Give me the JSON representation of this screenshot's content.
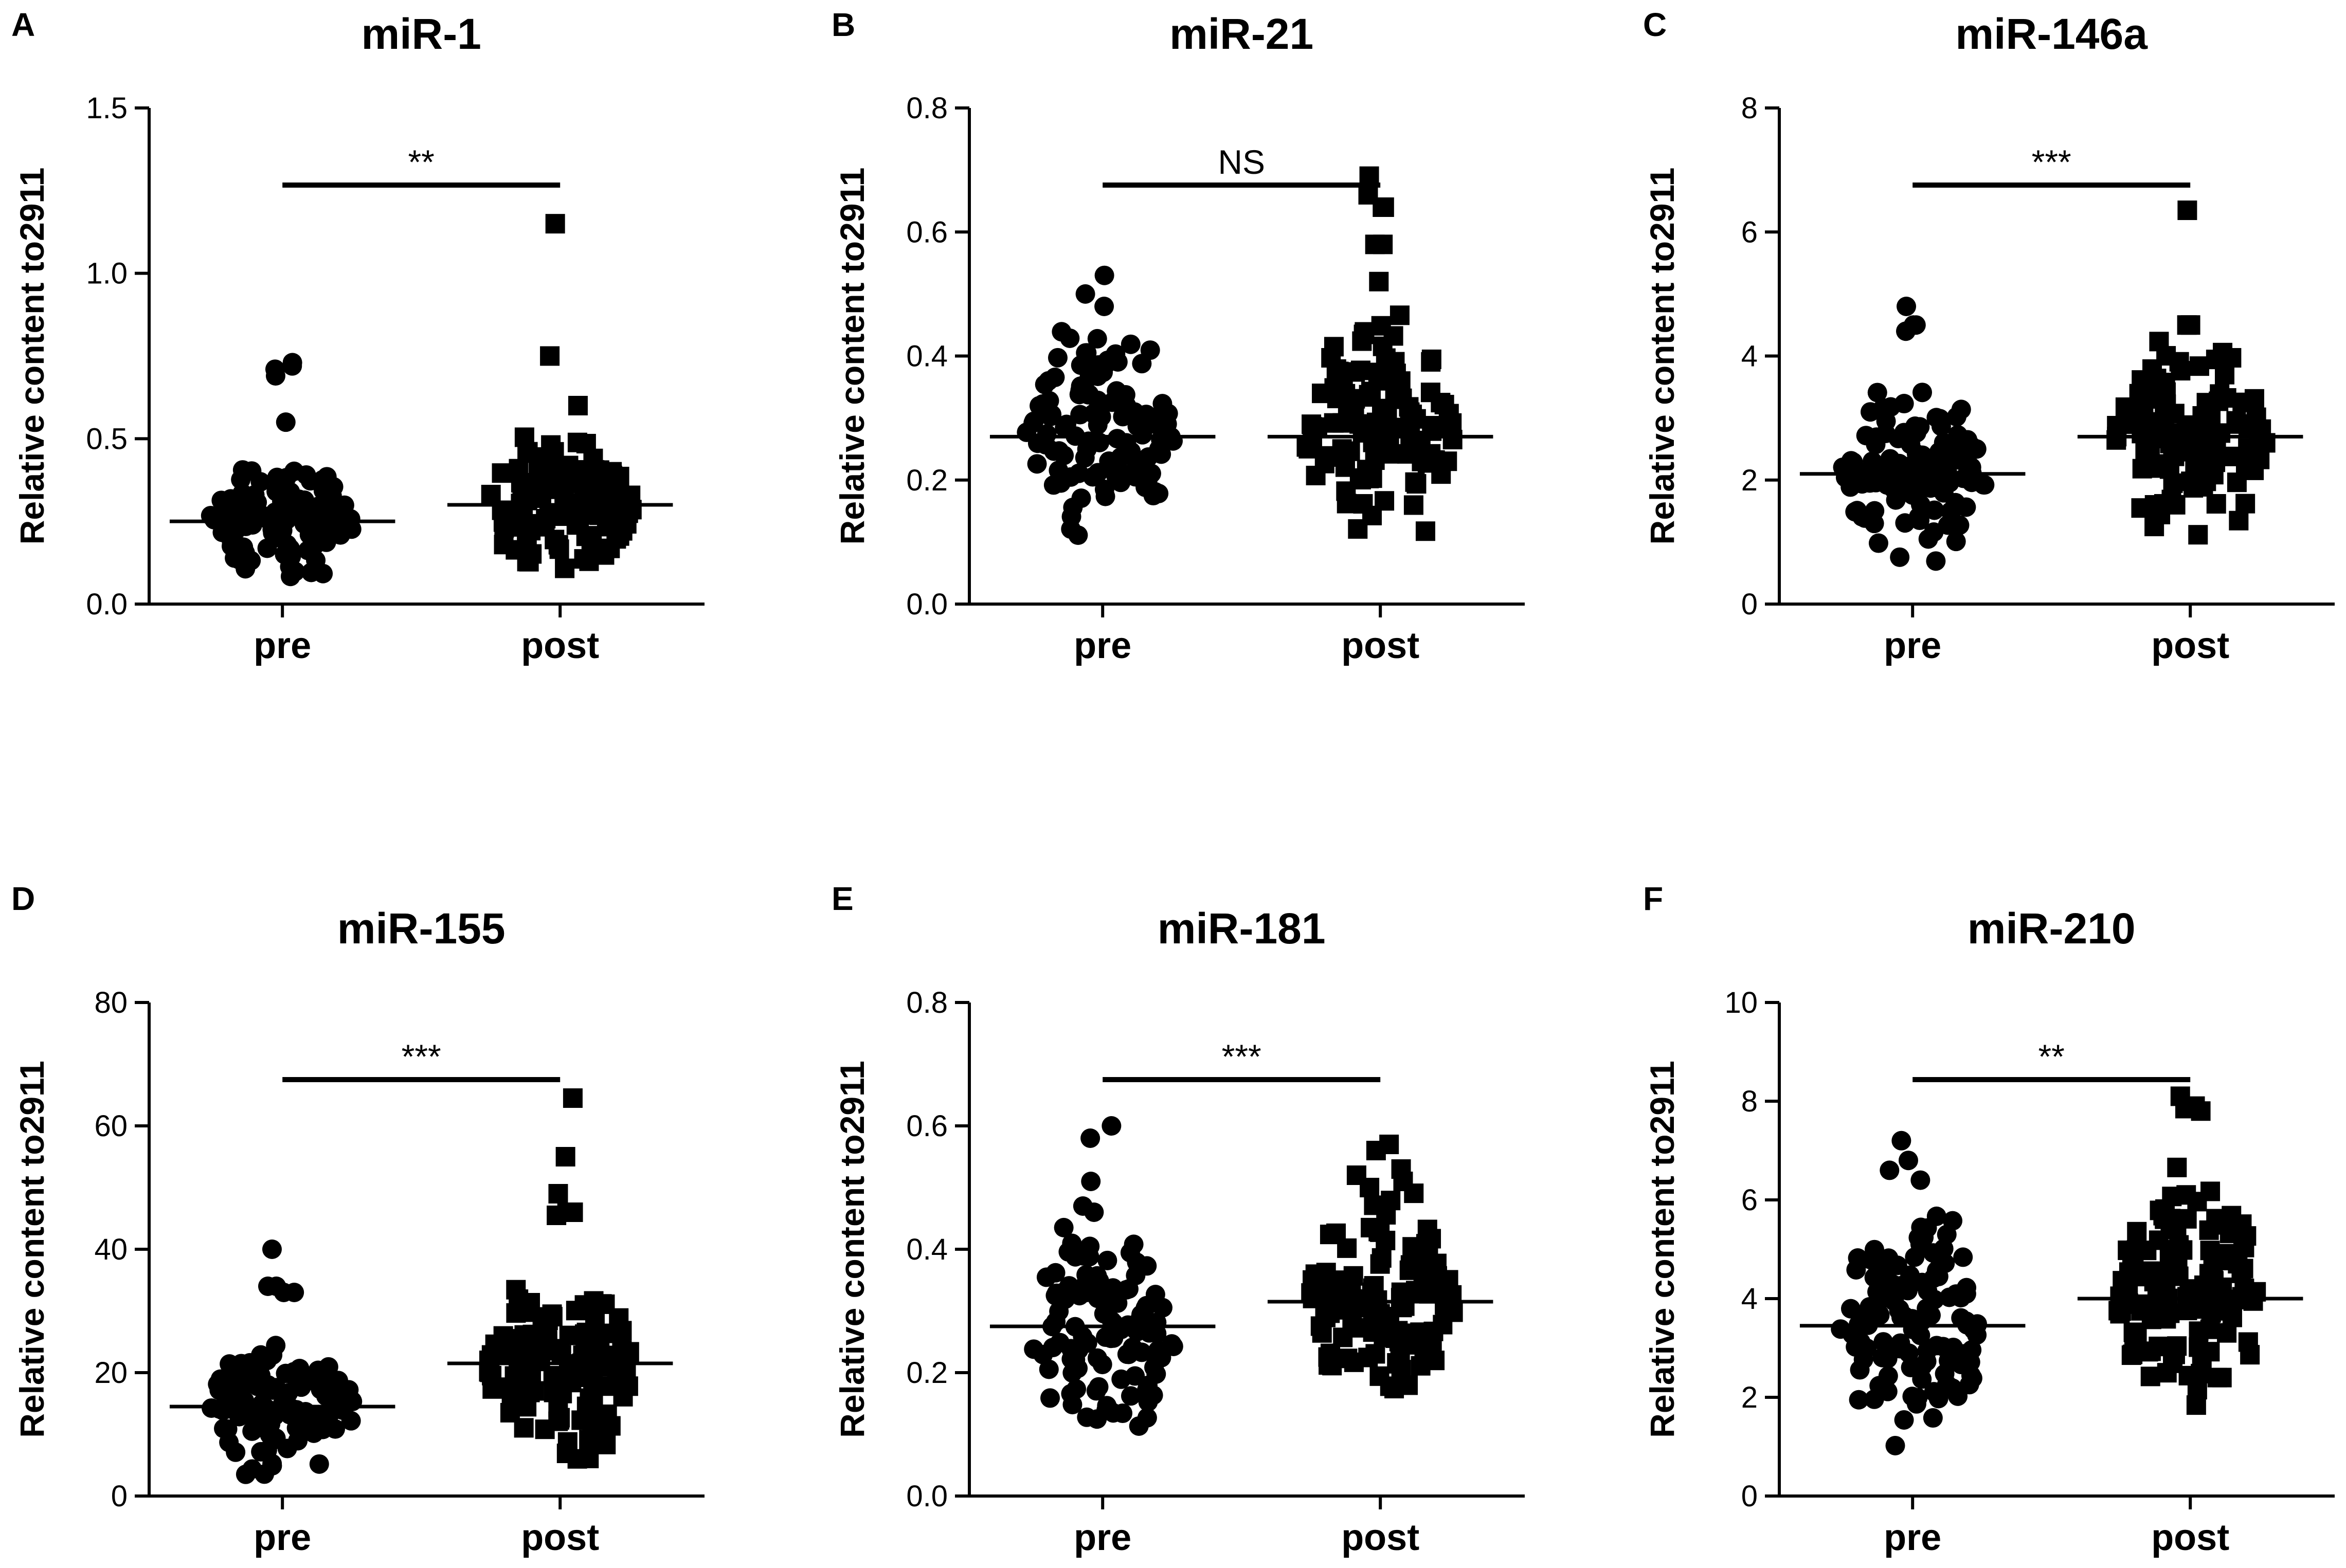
{
  "figure": {
    "y_axis_label": "Relative content to2911",
    "group_labels": [
      "pre",
      "post"
    ],
    "marker_color": "#000000"
  },
  "chart_data": [
    {
      "panel": "A",
      "type": "scatter",
      "title": "miR-1",
      "ylabel": "Relative content to2911",
      "ylim": [
        0,
        1.5
      ],
      "yticks": [
        "0.0",
        "0.5",
        "1.0",
        "1.5"
      ],
      "categories": [
        "pre",
        "post"
      ],
      "significance": "**",
      "series": [
        {
          "name": "pre",
          "marker": "circle",
          "mean": 0.25,
          "n": 115,
          "min": 0.06,
          "max": 0.73,
          "outliers": [
            0.73,
            0.72,
            0.71,
            0.69,
            0.55
          ]
        },
        {
          "name": "post",
          "marker": "square",
          "mean": 0.3,
          "n": 115,
          "min": 0.08,
          "max": 1.15,
          "outliers": [
            1.15,
            0.75,
            0.6
          ]
        }
      ]
    },
    {
      "panel": "B",
      "type": "scatter",
      "title": "miR-21",
      "ylabel": "Relative content to2911",
      "ylim": [
        0,
        0.8
      ],
      "yticks": [
        "0.0",
        "0.2",
        "0.4",
        "0.6",
        "0.8"
      ],
      "categories": [
        "pre",
        "post"
      ],
      "significance": "NS",
      "series": [
        {
          "name": "pre",
          "marker": "circle",
          "mean": 0.27,
          "n": 115,
          "min": 0.1,
          "max": 0.53,
          "outliers": [
            0.53,
            0.5,
            0.48
          ]
        },
        {
          "name": "post",
          "marker": "square",
          "mean": 0.27,
          "n": 115,
          "min": 0.1,
          "max": 0.69,
          "outliers": [
            0.69,
            0.66,
            0.64,
            0.64,
            0.58,
            0.58,
            0.52
          ]
        }
      ]
    },
    {
      "panel": "C",
      "type": "scatter",
      "title": "miR-146a",
      "ylabel": "Relative content to2911",
      "ylim": [
        0,
        8
      ],
      "yticks": [
        "0",
        "2",
        "4",
        "6",
        "8"
      ],
      "categories": [
        "pre",
        "post"
      ],
      "significance": "***",
      "series": [
        {
          "name": "pre",
          "marker": "circle",
          "mean": 2.1,
          "n": 120,
          "min": 0.6,
          "max": 4.8,
          "outliers": [
            4.8,
            4.5,
            4.5,
            4.4
          ]
        },
        {
          "name": "post",
          "marker": "square",
          "mean": 2.7,
          "n": 120,
          "min": 0.8,
          "max": 6.35,
          "outliers": [
            6.35,
            4.5,
            4.5
          ]
        }
      ]
    },
    {
      "panel": "D",
      "type": "scatter",
      "title": "miR-155",
      "ylabel": "Relative content to2911",
      "ylim": [
        0,
        80
      ],
      "yticks": [
        "0",
        "20",
        "40",
        "60",
        "80"
      ],
      "categories": [
        "pre",
        "post"
      ],
      "significance": "***",
      "series": [
        {
          "name": "pre",
          "marker": "circle",
          "mean": 14.5,
          "n": 120,
          "min": 3,
          "max": 40,
          "outliers": [
            40,
            34,
            34,
            33,
            33
          ]
        },
        {
          "name": "post",
          "marker": "square",
          "mean": 21.5,
          "n": 125,
          "min": 5,
          "max": 64.5,
          "outliers": [
            64.5,
            55,
            49,
            46,
            46,
            45.5
          ]
        }
      ]
    },
    {
      "panel": "E",
      "type": "scatter",
      "title": "miR-181",
      "ylabel": "Relative content to2911",
      "ylim": [
        0,
        0.8
      ],
      "yticks": [
        "0.0",
        "0.2",
        "0.4",
        "0.6",
        "0.8"
      ],
      "categories": [
        "pre",
        "post"
      ],
      "significance": "***",
      "series": [
        {
          "name": "pre",
          "marker": "circle",
          "mean": 0.275,
          "n": 115,
          "min": 0.09,
          "max": 0.6,
          "outliers": [
            0.6,
            0.58,
            0.51,
            0.47,
            0.46
          ]
        },
        {
          "name": "post",
          "marker": "square",
          "mean": 0.315,
          "n": 120,
          "min": 0.16,
          "max": 0.57,
          "outliers": [
            0.57,
            0.56,
            0.53,
            0.52,
            0.51,
            0.5
          ]
        }
      ]
    },
    {
      "panel": "F",
      "type": "scatter",
      "title": "miR-210",
      "ylabel": "Relative content to2911",
      "ylim": [
        0,
        10
      ],
      "yticks": [
        "0",
        "2",
        "4",
        "6",
        "8",
        "10"
      ],
      "categories": [
        "pre",
        "post"
      ],
      "significance": "**",
      "series": [
        {
          "name": "pre",
          "marker": "circle",
          "mean": 3.45,
          "n": 130,
          "min": 0.9,
          "max": 7.2,
          "outliers": [
            7.2,
            6.8,
            6.6,
            6.4
          ]
        },
        {
          "name": "post",
          "marker": "square",
          "mean": 4.0,
          "n": 130,
          "min": 1.8,
          "max": 8.1,
          "outliers": [
            8.1,
            7.9,
            7.85,
            7.8
          ]
        }
      ]
    }
  ]
}
